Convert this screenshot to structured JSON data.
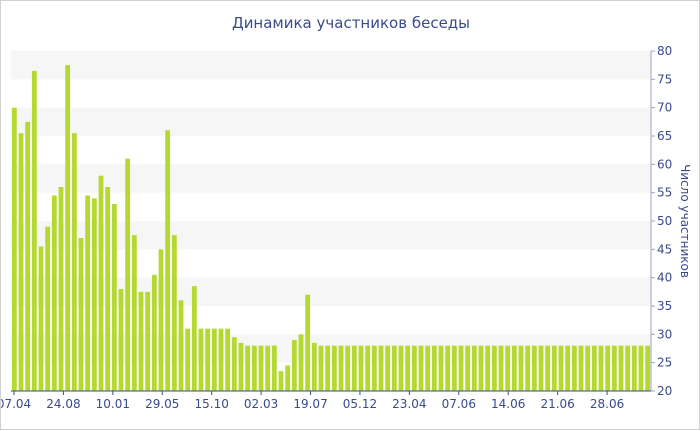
{
  "chart_data": {
    "type": "bar",
    "title": "Динамика участников беседы",
    "xlabel": "",
    "ylabel": "Число участников",
    "ylim": [
      20,
      80
    ],
    "yticks": [
      20,
      25,
      30,
      35,
      40,
      45,
      50,
      55,
      60,
      65,
      70,
      75,
      80
    ],
    "y_axis_side": "right",
    "grid": "alternating horizontal bands",
    "bar_color": "#b5d930",
    "band_color": "#f6f6f6",
    "text_color": "#3a4a8c",
    "x_tick_labels": [
      "07.04",
      "24.08",
      "10.01",
      "29.05",
      "15.10",
      "02.03",
      "19.07",
      "05.12",
      "23.04",
      "07.06",
      "14.06",
      "21.06",
      "28.06"
    ],
    "values": [
      70,
      65.5,
      67.5,
      76.5,
      45.5,
      49,
      54.5,
      56,
      77.5,
      65.5,
      47,
      54.5,
      54,
      58,
      56,
      53,
      38,
      61,
      47.5,
      37.5,
      37.5,
      40.5,
      45,
      66,
      47.5,
      36,
      31,
      38.5,
      31,
      31,
      31,
      31,
      31,
      29.5,
      28.5,
      28,
      28,
      28,
      28,
      28,
      23.5,
      24.5,
      29,
      30,
      37,
      28.5,
      28,
      28,
      28,
      28,
      28,
      28,
      28,
      28,
      28,
      28,
      28,
      28,
      28,
      28,
      28,
      28,
      28,
      28,
      28,
      28,
      28,
      28,
      28,
      28,
      28,
      28,
      28,
      28,
      28,
      28,
      28,
      28,
      28,
      28,
      28,
      28,
      28,
      28,
      28,
      28,
      28,
      28,
      28,
      28,
      28,
      28,
      28,
      28,
      28,
      28
    ]
  }
}
